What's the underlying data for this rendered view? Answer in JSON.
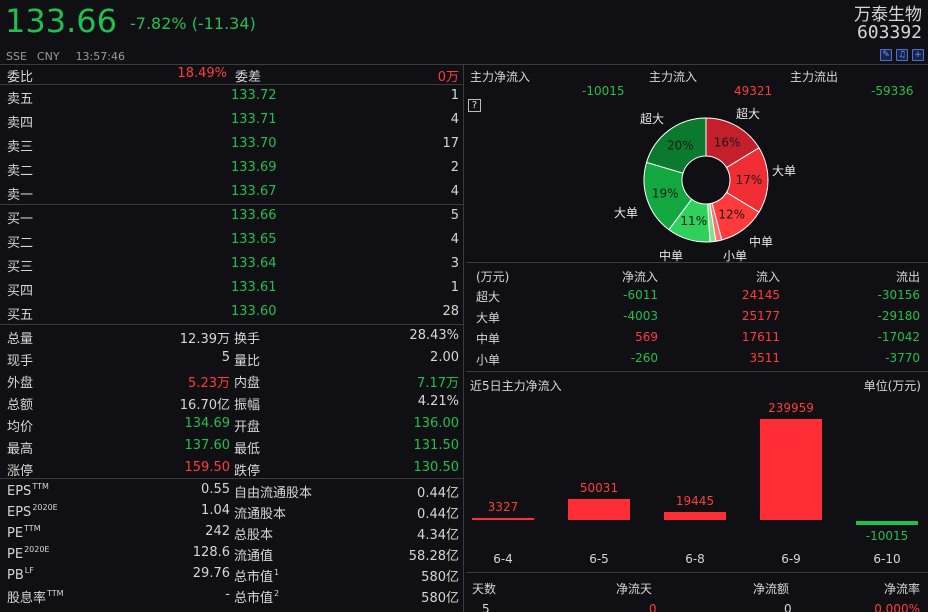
{
  "header": {
    "price": "133.66",
    "change": "-7.82% (-11.34)",
    "exchange": "SSE",
    "currency": "CNY",
    "time": "13:57:46",
    "stock_name": "万泰生物",
    "stock_code": "603392"
  },
  "weibi": {
    "label1": "委比",
    "value1": "18.49%",
    "label2": "委差",
    "value2": "0万"
  },
  "asks": [
    {
      "label": "卖五",
      "price": "133.72",
      "volume": "1"
    },
    {
      "label": "卖四",
      "price": "133.71",
      "volume": "4"
    },
    {
      "label": "卖三",
      "price": "133.70",
      "volume": "17"
    },
    {
      "label": "卖二",
      "price": "133.69",
      "volume": "2"
    },
    {
      "label": "卖一",
      "price": "133.67",
      "volume": "4"
    }
  ],
  "bids": [
    {
      "label": "买一",
      "price": "133.66",
      "volume": "5"
    },
    {
      "label": "买二",
      "price": "133.65",
      "volume": "4"
    },
    {
      "label": "买三",
      "price": "133.64",
      "volume": "3"
    },
    {
      "label": "买四",
      "price": "133.61",
      "volume": "1"
    },
    {
      "label": "买五",
      "price": "133.60",
      "volume": "28"
    }
  ],
  "stats": [
    {
      "l1": "总量",
      "v1": "12.39万",
      "c1": "white",
      "l2": "换手",
      "v2": "28.43%",
      "c2": "white"
    },
    {
      "l1": "现手",
      "v1": "5",
      "c1": "white",
      "l2": "量比",
      "v2": "2.00",
      "c2": "white"
    },
    {
      "l1": "外盘",
      "v1": "5.23万",
      "c1": "red",
      "l2": "内盘",
      "v2": "7.17万",
      "c2": "green"
    },
    {
      "l1": "总额",
      "v1": "16.70亿",
      "c1": "white",
      "l2": "振幅",
      "v2": "4.21%",
      "c2": "white"
    },
    {
      "l1": "均价",
      "v1": "134.69",
      "c1": "green",
      "l2": "开盘",
      "v2": "136.00",
      "c2": "green"
    },
    {
      "l1": "最高",
      "v1": "137.60",
      "c1": "green",
      "l2": "最低",
      "v2": "131.50",
      "c2": "green"
    },
    {
      "l1": "涨停",
      "v1": "159.50",
      "c1": "red",
      "l2": "跌停",
      "v2": "130.50",
      "c2": "green"
    }
  ],
  "fundamentals": [
    {
      "l1": "EPS",
      "s1": "TTM",
      "v1": "0.55",
      "l2": "自由流通股本",
      "s2": "",
      "v2": "0.44亿"
    },
    {
      "l1": "EPS",
      "s1": "2020E",
      "v1": "1.04",
      "l2": "流通股本",
      "s2": "",
      "v2": "0.44亿"
    },
    {
      "l1": "PE",
      "s1": "TTM",
      "v1": "242",
      "l2": "总股本",
      "s2": "",
      "v2": "4.34亿"
    },
    {
      "l1": "PE",
      "s1": "2020E",
      "v1": "128.6",
      "l2": "流通值",
      "s2": "",
      "v2": "58.28亿"
    },
    {
      "l1": "PB",
      "s1": "LF",
      "v1": "29.76",
      "l2": "总市值",
      "s2": "1",
      "v2": "580亿"
    },
    {
      "l1": "股息率",
      "s1": "TTM",
      "v1": "-",
      "l2": "总市值",
      "s2": "2",
      "v2": "580亿"
    }
  ],
  "main_flow": {
    "net_label": "主力净流入",
    "net_value": "-10015",
    "in_label": "主力流入",
    "in_value": "49321",
    "out_label": "主力流出",
    "out_value": "-59336",
    "help_icon": "?"
  },
  "pie": {
    "labels": {
      "top_left": "超大",
      "top_right": "超大",
      "right": "大单",
      "left": "大单",
      "bottom_right": "中单",
      "bottom_left": "中单",
      "bottom": "小单"
    },
    "slices": [
      {
        "pct": 16,
        "label": "16%",
        "color": "#c3202b",
        "side": "in"
      },
      {
        "pct": 17,
        "label": "17%",
        "color": "#f02c35",
        "side": "in"
      },
      {
        "pct": 12,
        "label": "12%",
        "color": "#ff3b3b",
        "side": "in"
      },
      {
        "pct": 1.5,
        "label": "",
        "color": "#ff7070",
        "side": "in"
      },
      {
        "pct": 1.5,
        "label": "",
        "color": "#86e08f",
        "side": "out"
      },
      {
        "pct": 11,
        "label": "11%",
        "color": "#2ed15a",
        "side": "out"
      },
      {
        "pct": 19,
        "label": "19%",
        "color": "#13a83f",
        "side": "out"
      },
      {
        "pct": 20,
        "label": "20%",
        "color": "#0b7a2e",
        "side": "out"
      }
    ]
  },
  "flow_table": {
    "headers": [
      "(万元)",
      "净流入",
      "流入",
      "流出"
    ],
    "rows": [
      {
        "name": "超大",
        "net": "-6011",
        "net_c": "green",
        "in": "24145",
        "out": "-30156"
      },
      {
        "name": "大单",
        "net": "-4003",
        "net_c": "green",
        "in": "25177",
        "out": "-29180"
      },
      {
        "name": "中单",
        "net": "569",
        "net_c": "red",
        "in": "17611",
        "out": "-17042"
      },
      {
        "name": "小单",
        "net": "-260",
        "net_c": "green",
        "in": "3511",
        "out": "-3770"
      }
    ]
  },
  "five_day": {
    "title": "近5日主力净流入",
    "unit": "单位(万元)",
    "chart_data": {
      "type": "bar",
      "categories": [
        "6-4",
        "6-5",
        "6-8",
        "6-9",
        "6-10"
      ],
      "values": [
        3327,
        50031,
        19445,
        239959,
        -10015
      ],
      "labels": [
        "3327",
        "50031",
        "19445",
        "239959",
        "-10015"
      ],
      "colors": {
        "positive": "#ff2d36",
        "negative": "#1fc04f"
      }
    }
  },
  "bottom_row": {
    "c1": "天数",
    "c2": "净流天",
    "c3": "净流额",
    "c4": "净流率",
    "v1": "5",
    "v2": "0",
    "v3": "0",
    "v4": "0.000%"
  }
}
